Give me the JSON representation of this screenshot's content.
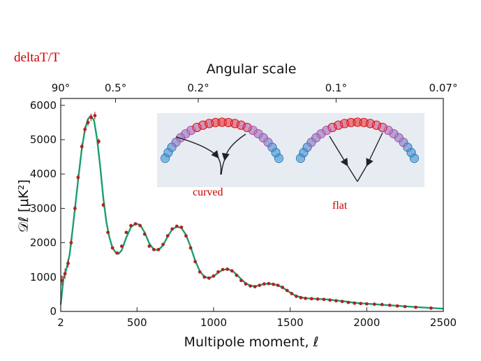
{
  "slide": {
    "title": "deltaT/T"
  },
  "chart_data": {
    "type": "scatter",
    "title": "",
    "xlabel": "Multipole moment, ℓ",
    "ylabel": "𝒟ℓ [μK²]",
    "top_axis_label": "Angular scale",
    "top_ticks": [
      {
        "label": "90°",
        "l": 2
      },
      {
        "label": "0.5°",
        "l": 360
      },
      {
        "label": "0.2°",
        "l": 900
      },
      {
        "label": "0.1°",
        "l": 1800
      },
      {
        "label": "0.07°",
        "l": 2500
      }
    ],
    "xlim": [
      2,
      2500
    ],
    "ylim": [
      0,
      6200
    ],
    "x_ticks": [
      2,
      500,
      1000,
      1500,
      2000,
      2500
    ],
    "x_tick_labels": [
      "2",
      "500",
      "1000",
      "1500",
      "2000",
      "2500"
    ],
    "y_ticks": [
      0,
      1000,
      2000,
      3000,
      4000,
      5000,
      6000
    ],
    "y_tick_labels": [
      "0",
      "1000",
      "2000",
      "3000",
      "4000",
      "5000",
      "6000"
    ],
    "series": [
      {
        "kind": "points",
        "color": "#b22222",
        "x": [
          10,
          30,
          50,
          70,
          95,
          115,
          140,
          160,
          180,
          200,
          225,
          250,
          280,
          310,
          340,
          370,
          400,
          430,
          460,
          490,
          520,
          550,
          580,
          610,
          640,
          670,
          700,
          730,
          760,
          790,
          820,
          850,
          880,
          910,
          940,
          970,
          1000,
          1030,
          1060,
          1090,
          1120,
          1150,
          1180,
          1210,
          1240,
          1270,
          1300,
          1330,
          1360,
          1390,
          1420,
          1450,
          1480,
          1510,
          1540,
          1570,
          1600,
          1640,
          1680,
          1720,
          1760,
          1800,
          1840,
          1880,
          1920,
          1960,
          2000,
          2050,
          2100,
          2150,
          2200,
          2250,
          2320,
          2420
        ],
        "y": [
          900,
          1100,
          1400,
          2000,
          3000,
          3900,
          4800,
          5300,
          5500,
          5650,
          5700,
          4950,
          3100,
          2300,
          1850,
          1700,
          1900,
          2300,
          2500,
          2550,
          2500,
          2250,
          1900,
          1800,
          1800,
          1950,
          2200,
          2400,
          2480,
          2450,
          2200,
          1850,
          1450,
          1150,
          1000,
          970,
          1030,
          1150,
          1220,
          1230,
          1180,
          1050,
          900,
          800,
          740,
          720,
          760,
          800,
          810,
          790,
          760,
          700,
          610,
          520,
          440,
          400,
          380,
          370,
          360,
          350,
          330,
          310,
          290,
          260,
          240,
          230,
          220,
          210,
          200,
          180,
          160,
          140,
          120,
          95
        ],
        "yerr": [
          150,
          150,
          120,
          100,
          90,
          90,
          90,
          90,
          100,
          110,
          110,
          80,
          60,
          50,
          40,
          40,
          40,
          40,
          40,
          40,
          40,
          40,
          40,
          40,
          40,
          40,
          40,
          40,
          40,
          40,
          40,
          35,
          35,
          30,
          30,
          30,
          30,
          30,
          30,
          30,
          30,
          30,
          30,
          30,
          30,
          30,
          30,
          30,
          30,
          30,
          30,
          30,
          30,
          30,
          30,
          30,
          30,
          30,
          30,
          30,
          30,
          30,
          30,
          30,
          30,
          30,
          30,
          30,
          30,
          30,
          30,
          30,
          30,
          30
        ]
      },
      {
        "kind": "fit",
        "color": "#1a9e6e",
        "x": [
          2,
          20,
          40,
          60,
          80,
          100,
          120,
          140,
          160,
          180,
          200,
          220,
          240,
          260,
          280,
          300,
          320,
          340,
          360,
          380,
          400,
          430,
          460,
          490,
          520,
          550,
          580,
          610,
          640,
          670,
          700,
          730,
          760,
          790,
          820,
          850,
          880,
          910,
          940,
          970,
          1000,
          1030,
          1060,
          1090,
          1120,
          1150,
          1180,
          1210,
          1240,
          1270,
          1300,
          1330,
          1360,
          1390,
          1420,
          1450,
          1480,
          1510,
          1540,
          1570,
          1600,
          1650,
          1700,
          1750,
          1800,
          1850,
          1900,
          1950,
          2000,
          2100,
          2200,
          2300,
          2400,
          2500
        ],
        "y": [
          200,
          950,
          1250,
          1650,
          2400,
          3200,
          4000,
          4750,
          5300,
          5600,
          5700,
          5550,
          5000,
          4200,
          3300,
          2600,
          2150,
          1850,
          1720,
          1680,
          1780,
          2150,
          2450,
          2560,
          2520,
          2300,
          1980,
          1800,
          1790,
          1920,
          2180,
          2390,
          2470,
          2430,
          2230,
          1880,
          1480,
          1170,
          1010,
          970,
          1020,
          1130,
          1210,
          1230,
          1190,
          1080,
          940,
          820,
          750,
          730,
          760,
          800,
          810,
          790,
          760,
          700,
          610,
          520,
          450,
          410,
          385,
          370,
          360,
          345,
          320,
          295,
          265,
          240,
          225,
          195,
          165,
          135,
          105,
          80
        ]
      }
    ],
    "inset": {
      "labels": [
        "curved",
        "flat"
      ]
    }
  }
}
